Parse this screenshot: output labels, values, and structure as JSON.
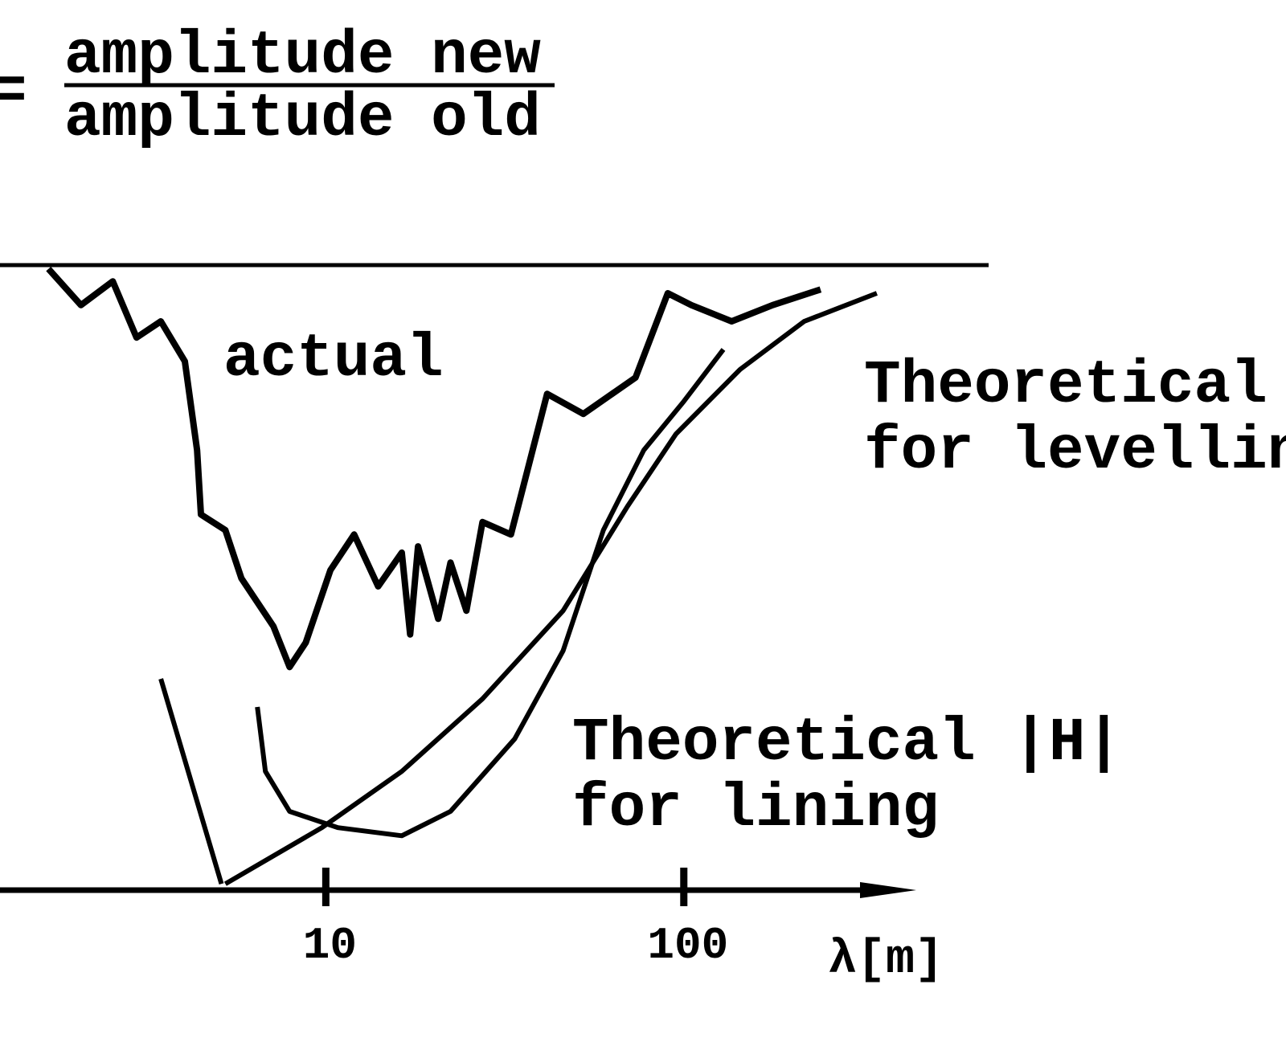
{
  "chart_data": {
    "type": "line",
    "ylabel": {
      "sign": "=",
      "numerator": "amplitude new",
      "denominator": "amplitude old"
    },
    "xlabel": "λ[m]",
    "xscale": "log",
    "xlim": [
      1.23,
      446
    ],
    "xticks": [
      10,
      100
    ],
    "ylim": [
      0,
      1
    ],
    "series": [
      {
        "name": "actual",
        "color": "#000000",
        "x": [
          1.68,
          2.07,
          2.54,
          2.96,
          3.46,
          4.04,
          4.37,
          4.48,
          5.24,
          5.81,
          7.14,
          7.92,
          8.79,
          10.3,
          12.0,
          14.0,
          16.3,
          17.2,
          18.1,
          20.6,
          22.3,
          24.7,
          27.4,
          32.9,
          41.5,
          52.4,
          73.3,
          90.2,
          105,
          136,
          177,
          241
        ],
        "values": [
          0.994,
          0.936,
          0.974,
          0.884,
          0.91,
          0.846,
          0.704,
          0.601,
          0.576,
          0.499,
          0.422,
          0.357,
          0.396,
          0.512,
          0.569,
          0.486,
          0.54,
          0.409,
          0.55,
          0.434,
          0.524,
          0.447,
          0.589,
          0.569,
          0.794,
          0.762,
          0.82,
          0.955,
          0.936,
          0.91,
          0.936,
          0.961
        ]
      },
      {
        "label": [
          "Theoretical |H|",
          "for levelling"
        ],
        "color": "#000000",
        "x": [
          5.24,
          9.75,
          16.3,
          27.4,
          46.0,
          69.6,
          95.1,
          143.6,
          217,
          346
        ],
        "values": [
          0.01,
          0.1,
          0.19,
          0.306,
          0.447,
          0.614,
          0.73,
          0.833,
          0.91,
          0.955
        ]
      },
      {
        "label": [
          "Theoretical |H|",
          "for lining"
        ],
        "color": "#000000",
        "x": [
          3.46,
          5.11,
          null,
          6.44,
          6.78,
          7.92,
          10.8,
          16.3,
          22.3,
          33.7,
          46.0,
          59.6,
          77.3,
          100,
          129
        ],
        "values": [
          0.338,
          0.01,
          null,
          0.293,
          0.19,
          0.126,
          0.1,
          0.087,
          0.126,
          0.242,
          0.383,
          0.576,
          0.704,
          0.782,
          0.865
        ]
      }
    ]
  }
}
